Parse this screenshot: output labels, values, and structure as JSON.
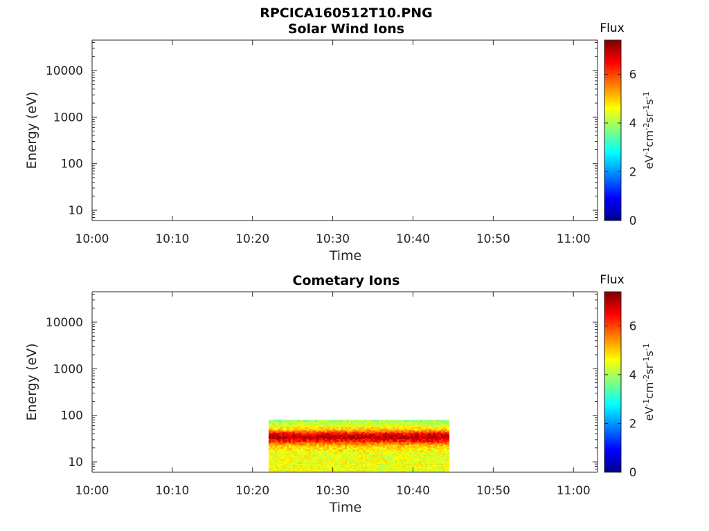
{
  "figure": {
    "file_title": "RPCICA160512T10.PNG"
  },
  "colors": {
    "axis": "#262626",
    "background": "#ffffff",
    "colormap": [
      "#00008f",
      "#0000ff",
      "#0080ff",
      "#00ffff",
      "#80ff80",
      "#ffff00",
      "#ff8000",
      "#ff0000",
      "#800000"
    ]
  },
  "colorbar": {
    "title": "Flux",
    "label": "eV-1cm-2sr-1s-1",
    "label_parts": [
      {
        "base": "eV",
        "sup": "-1"
      },
      {
        "base": "cm",
        "sup": "-2"
      },
      {
        "base": "sr",
        "sup": "-1"
      },
      {
        "base": "s",
        "sup": "-1"
      }
    ],
    "range": [
      0,
      7.4
    ],
    "ticks": [
      0,
      2,
      4,
      6
    ]
  },
  "chart_data": [
    {
      "type": "heatmap",
      "title": "Solar Wind Ions",
      "xlabel": "Time",
      "ylabel": "Energy (eV)",
      "xticks": [
        "10:00",
        "10:10",
        "10:20",
        "10:30",
        "10:40",
        "10:50",
        "11:00"
      ],
      "xlim": [
        "10:00",
        "11:03"
      ],
      "yscale": "log",
      "ylim": [
        6,
        45000
      ],
      "yticks": [
        10,
        100,
        1000,
        10000
      ],
      "ytick_labels": [
        "10",
        "100",
        "1000",
        "10000"
      ],
      "data": []
    },
    {
      "type": "heatmap",
      "title": "Cometary Ions",
      "xlabel": "Time",
      "ylabel": "Energy (eV)",
      "xticks": [
        "10:00",
        "10:10",
        "10:20",
        "10:30",
        "10:40",
        "10:50",
        "11:00"
      ],
      "xlim": [
        "10:00",
        "11:03"
      ],
      "yscale": "log",
      "ylim": [
        6,
        45000
      ],
      "yticks": [
        10,
        100,
        1000,
        10000
      ],
      "ytick_labels": [
        "10",
        "100",
        "1000",
        "10000"
      ],
      "data": {
        "time_range": [
          "10:22",
          "10:44:30"
        ],
        "energy_range": [
          6,
          80
        ],
        "energy_profile": [
          {
            "energy": 6,
            "flux": 4.5
          },
          {
            "energy": 15,
            "flux": 4.5
          },
          {
            "energy": 22,
            "flux": 4.9
          },
          {
            "energy": 27,
            "flux": 6.0
          },
          {
            "energy": 34,
            "flux": 7.0
          },
          {
            "energy": 40,
            "flux": 6.6
          },
          {
            "energy": 48,
            "flux": 5.2
          },
          {
            "energy": 60,
            "flux": 4.4
          },
          {
            "energy": 80,
            "flux": 3.9
          }
        ]
      }
    }
  ]
}
